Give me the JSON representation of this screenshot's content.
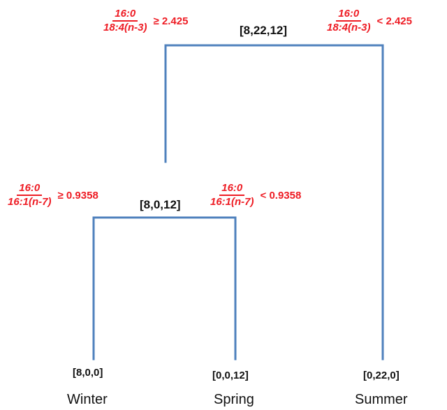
{
  "colors": {
    "edges": "#4f81bd",
    "rules": "#ee1c24",
    "text": "#111111"
  },
  "root": {
    "counts": "[8,22,12]",
    "left_rule": {
      "numerator": "16:0",
      "denominator": "18:4(n-3)",
      "inequality": "≥ 2.425"
    },
    "right_rule": {
      "numerator": "16:0",
      "denominator": "18:4(n-3)",
      "inequality": "< 2.425"
    }
  },
  "inner": {
    "counts": "[8,0,12]",
    "left_rule": {
      "numerator": "16:0",
      "denominator": "16:1(n-7)",
      "inequality": "≥ 0.9358"
    },
    "right_rule": {
      "numerator": "16:0",
      "denominator": "16:1(n-7)",
      "inequality": "< 0.9358"
    }
  },
  "leaves": [
    {
      "counts": "[8,0,0]",
      "class": "Winter"
    },
    {
      "counts": "[0,0,12]",
      "class": "Spring"
    },
    {
      "counts": "[0,22,0]",
      "class": "Summer"
    }
  ]
}
